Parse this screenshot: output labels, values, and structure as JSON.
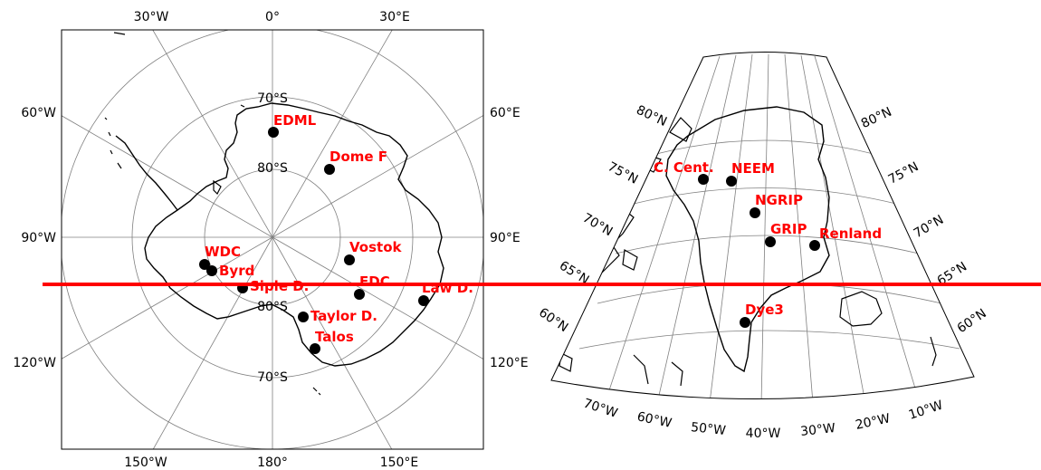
{
  "antarctica": {
    "meridian_labels_top": [
      "30°W",
      "0°",
      "30°E"
    ],
    "meridian_labels_bottom": [
      "150°W",
      "180°",
      "150°E"
    ],
    "side_labels_left": [
      "60°W",
      "90°W",
      "120°W"
    ],
    "side_labels_right": [
      "60°E",
      "90°E",
      "120°E"
    ],
    "parallel_labels": [
      "70°S",
      "80°S",
      "80°S",
      "70°S"
    ],
    "sites": [
      "EDML",
      "Dome F",
      "Vostok",
      "WDC",
      "Byrd",
      "Siple D.",
      "EDC",
      "Law D.",
      "Taylor D.",
      "Talos"
    ]
  },
  "greenland": {
    "lat_labels_left": [
      "80°N",
      "75°N",
      "70°N",
      "65°N",
      "60°N"
    ],
    "lat_labels_right": [
      "80°N",
      "75°N",
      "70°N",
      "65°N",
      "60°N"
    ],
    "lon_labels_bottom": [
      "70°W",
      "60°W",
      "50°W",
      "40°W",
      "30°W",
      "20°W",
      "10°W"
    ],
    "sites": [
      "C. Cent.",
      "NEEM",
      "NGRIP",
      "GRIP",
      "Renland",
      "Dye3"
    ]
  },
  "colors": {
    "site_label": "#ff0000",
    "site_marker": "#000000",
    "horizontal_line": "#ff0000",
    "graticule": "#808080",
    "coastline": "#000000"
  }
}
